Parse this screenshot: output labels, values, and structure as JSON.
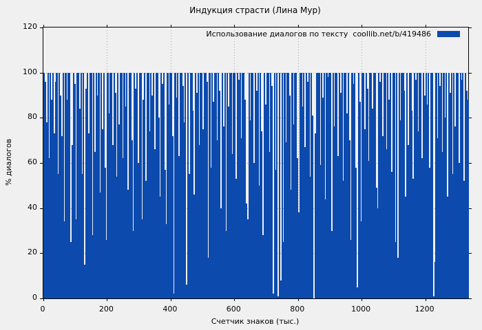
{
  "figure": {
    "background": "#f0f0f0",
    "text_color": "#000000",
    "grid_color": "#a6a6a6"
  },
  "chart_data": {
    "type": "bar",
    "style": "impulses",
    "title": "Индукция страсти (Лина Мур)",
    "legend": "Использование диалогов по тексту  coollib.net/b/419486",
    "legend_position": "top-right-inside",
    "series_color": "#0c4aad",
    "xlabel": "Счетчик знаков (тыс.)",
    "ylabel": "% диалогов",
    "xlim": [
      0,
      1335
    ],
    "ylim": [
      0,
      120
    ],
    "x_ticks": [
      0,
      200,
      400,
      600,
      800,
      1000,
      1200
    ],
    "y_ticks": [
      0,
      20,
      40,
      60,
      80,
      100,
      120
    ],
    "grid": true,
    "x_start": 2,
    "x_step": 4,
    "values": [
      100,
      96,
      78,
      100,
      62,
      100,
      88,
      100,
      73,
      96,
      100,
      55,
      100,
      90,
      72,
      100,
      34,
      100,
      88,
      100,
      100,
      25,
      68,
      100,
      95,
      35,
      100,
      100,
      84,
      100,
      55,
      100,
      15,
      93,
      100,
      73,
      100,
      100,
      28,
      100,
      65,
      100,
      90,
      100,
      47,
      100,
      75,
      100,
      58,
      26,
      100,
      82,
      100,
      100,
      68,
      100,
      91,
      54,
      100,
      77,
      100,
      100,
      62,
      100,
      85,
      100,
      48,
      100,
      100,
      70,
      30,
      100,
      93,
      100,
      60,
      100,
      100,
      35,
      88,
      100,
      52,
      100,
      100,
      74,
      100,
      90,
      100,
      66,
      100,
      100,
      80,
      45,
      100,
      95,
      100,
      57,
      33,
      100,
      86,
      100,
      100,
      72,
      2,
      100,
      89,
      100,
      63,
      100,
      100,
      94,
      78,
      100,
      6,
      100,
      55,
      100,
      100,
      83,
      46,
      100,
      91,
      100,
      68,
      100,
      100,
      75,
      100,
      100,
      96,
      18,
      100,
      58,
      100,
      87,
      100,
      100,
      70,
      100,
      92,
      40,
      100,
      76,
      100,
      30,
      100,
      85,
      100,
      100,
      64,
      100,
      100,
      53,
      100,
      97,
      100,
      71,
      100,
      100,
      88,
      42,
      35,
      100,
      79,
      100,
      100,
      60,
      100,
      92,
      100,
      50,
      100,
      74,
      28,
      100,
      86,
      100,
      100,
      65,
      100,
      94,
      2,
      100,
      57,
      100,
      1,
      100,
      8,
      100,
      25,
      100,
      69,
      100,
      100,
      90,
      48,
      100,
      77,
      100,
      100,
      62,
      38,
      100,
      100,
      85,
      100,
      67,
      100,
      96,
      100,
      54,
      100,
      81,
      0,
      73,
      100,
      100,
      100,
      59,
      100,
      89,
      100,
      44,
      100,
      98,
      100,
      100,
      30,
      100,
      76,
      100,
      100,
      63,
      100,
      91,
      100,
      52,
      100,
      100,
      82,
      100,
      70,
      26,
      100,
      95,
      100,
      58,
      5,
      100,
      87,
      34,
      100,
      100,
      75,
      100,
      93,
      61,
      100,
      100,
      84,
      100,
      100,
      49,
      40,
      100,
      96,
      100,
      72,
      100,
      100,
      66,
      100,
      88,
      100,
      56,
      100,
      100,
      25,
      100,
      18,
      100,
      79,
      100,
      100,
      92,
      45,
      100,
      68,
      100,
      100,
      83,
      53,
      100,
      97,
      100,
      74,
      100,
      100,
      62,
      100,
      90,
      100,
      86,
      100,
      58,
      100,
      100,
      1,
      16,
      100,
      71,
      100,
      94,
      100,
      65,
      100,
      80,
      100,
      45,
      100,
      91,
      100,
      55,
      100,
      76,
      100,
      100,
      60,
      100,
      97,
      100,
      52,
      100,
      92,
      88
    ]
  }
}
